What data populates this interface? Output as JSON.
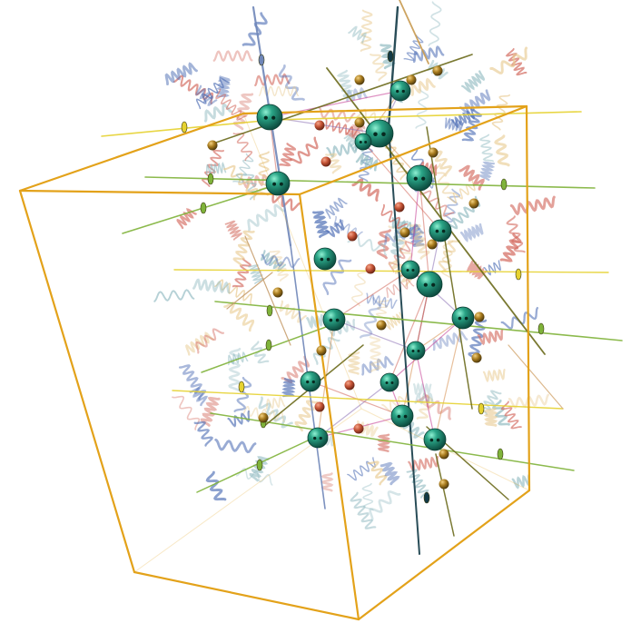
{
  "scene": {
    "description_free": true,
    "colors": {
      "background": "#ffffff",
      "unit_cell": "#e3a21a",
      "sphere": "#1f8f78",
      "sphere_highlight": "#7be0c4",
      "axis_yellow": "#e6d230",
      "axis_green": "#7fb33a",
      "axis_olive": "#6b6a1c",
      "axis_blue": "#6f86b8",
      "axis_dark": "#123a46",
      "ribbon_blue": "#4f6fb5",
      "ribbon_red": "#d2665a",
      "ribbon_cream": "#e8c98e",
      "ribbon_teal": "#8fb9c0",
      "link_magenta": "#c2378f"
    },
    "icons": [
      "unit-cell-box",
      "symmetry-axis",
      "assembly-sphere",
      "protein-ribbon"
    ]
  }
}
